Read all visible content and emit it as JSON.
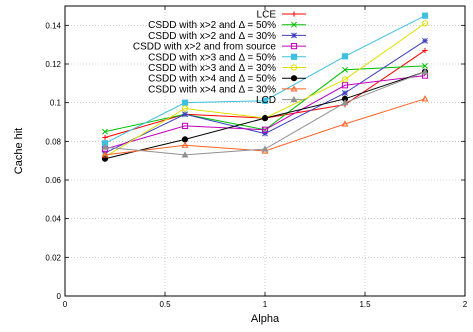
{
  "chart_data": {
    "type": "line",
    "title": "",
    "xlabel": "Alpha",
    "ylabel": "Cache hit",
    "xlim": [
      0,
      2
    ],
    "ylim": [
      0,
      0.15
    ],
    "xticks": [
      0,
      0.5,
      1,
      1.5,
      2
    ],
    "xtick_labels": [
      "0",
      "0.5",
      "1",
      "1.5",
      "2"
    ],
    "yticks": [
      0,
      0.02,
      0.04,
      0.06,
      0.08,
      0.1,
      0.12,
      0.14
    ],
    "ytick_labels": [
      "0",
      "0.02",
      "0.04",
      "0.06",
      "0.08",
      "0.1",
      "0.12",
      "0.14"
    ],
    "grid": true,
    "legend_position": "top-right",
    "x": [
      0.2,
      0.6,
      1.0,
      1.4,
      1.8
    ],
    "series": [
      {
        "name": "LCE",
        "color": "#ff0000",
        "marker": "plus",
        "values": [
          0.082,
          0.094,
          0.092,
          0.099,
          0.127
        ]
      },
      {
        "name": "CSDD with x>2 and Δ = 50%",
        "color": "#00c000",
        "marker": "x",
        "values": [
          0.085,
          0.094,
          0.086,
          0.117,
          0.119
        ]
      },
      {
        "name": "CSDD with x>2 and Δ = 30%",
        "color": "#3f3fbf",
        "marker": "star",
        "values": [
          0.074,
          0.094,
          0.084,
          0.105,
          0.132
        ]
      },
      {
        "name": "CSDD with x>2 and from source",
        "color": "#c000c0",
        "marker": "square",
        "values": [
          0.076,
          0.088,
          0.086,
          0.109,
          0.114
        ]
      },
      {
        "name": "CSDD with x>3 and Δ = 50%",
        "color": "#40c0e0",
        "marker": "filled-square",
        "values": [
          0.079,
          0.1,
          0.101,
          0.124,
          0.145
        ]
      },
      {
        "name": "CSDD with x>3 and Δ = 30%",
        "color": "#e0e000",
        "marker": "circle",
        "values": [
          0.072,
          0.097,
          0.092,
          0.112,
          0.141
        ]
      },
      {
        "name": "CSDD with x>4 and Δ = 50%",
        "color": "#000000",
        "marker": "filled-circle",
        "values": [
          0.071,
          0.081,
          0.092,
          0.102,
          0.116
        ]
      },
      {
        "name": "CSDD with x>4 and Δ = 30%",
        "color": "#ff6020",
        "marker": "triangle",
        "values": [
          0.073,
          0.078,
          0.075,
          0.089,
          0.102
        ]
      },
      {
        "name": "LCD",
        "color": "#909090",
        "marker": "filled-triangle",
        "values": [
          0.077,
          0.073,
          0.076,
          0.1,
          0.116
        ]
      }
    ]
  }
}
